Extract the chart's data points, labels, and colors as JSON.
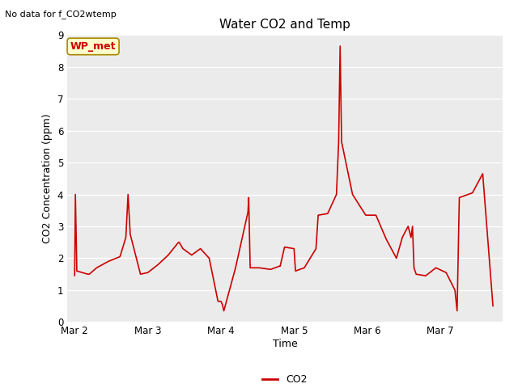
{
  "title": "Water CO2 and Temp",
  "top_left_text": "No data for f_CO2wtemp",
  "ylabel": "CO2 Concentration (ppm)",
  "xlabel": "Time",
  "ylim": [
    0.0,
    9.0
  ],
  "yticks": [
    0.0,
    1.0,
    2.0,
    3.0,
    4.0,
    5.0,
    6.0,
    7.0,
    8.0,
    9.0
  ],
  "background_color": "#ffffff",
  "plot_bg_color": "#ebebeb",
  "grid_color": "#ffffff",
  "line_color": "#cc0000",
  "legend_label": "CO2",
  "annotation_label": "WP_met",
  "annotation_bg": "#ffffcc",
  "annotation_border": "#aa8800",
  "x_days": [
    0.0,
    0.01,
    0.03,
    0.18,
    0.2,
    0.3,
    0.46,
    0.62,
    0.7,
    0.73,
    0.76,
    0.9,
    1.0,
    1.14,
    1.28,
    1.42,
    1.43,
    1.48,
    1.6,
    1.72,
    1.84,
    1.96,
    2.0,
    2.01,
    2.02,
    2.04,
    2.2,
    2.37,
    2.38,
    2.4,
    2.52,
    2.68,
    2.8,
    2.81,
    2.87,
    3.0,
    3.01,
    3.02,
    3.14,
    3.3,
    3.33,
    3.46,
    3.58,
    3.61,
    3.63,
    3.65,
    3.8,
    3.98,
    4.12,
    4.26,
    4.4,
    4.48,
    4.56,
    4.6,
    4.62,
    4.64,
    4.67,
    4.8,
    4.94,
    5.08,
    5.2,
    5.23,
    5.26,
    5.44,
    5.58,
    5.72
  ],
  "y_values": [
    1.45,
    4.0,
    1.6,
    1.5,
    1.5,
    1.7,
    1.9,
    2.05,
    2.65,
    4.0,
    2.75,
    1.5,
    1.55,
    1.8,
    2.1,
    2.5,
    2.5,
    2.3,
    2.1,
    2.3,
    2.0,
    0.65,
    0.65,
    0.6,
    0.55,
    0.35,
    1.7,
    3.45,
    3.9,
    1.7,
    1.7,
    1.65,
    1.75,
    1.75,
    2.35,
    2.3,
    1.95,
    1.6,
    1.7,
    2.3,
    3.35,
    3.4,
    4.0,
    5.65,
    8.65,
    5.65,
    4.0,
    3.35,
    3.35,
    2.6,
    2.0,
    2.65,
    3.0,
    2.65,
    3.0,
    1.7,
    1.5,
    1.45,
    1.7,
    1.55,
    1.0,
    0.35,
    3.9,
    4.05,
    4.65,
    0.5
  ],
  "xtick_positions": [
    0,
    1,
    2,
    3,
    4,
    5
  ],
  "xtick_labels": [
    "Mar 2",
    "Mar 3",
    "Mar 4",
    "Mar 5",
    "Mar 6",
    "Mar 7"
  ],
  "xlim": [
    -0.1,
    5.85
  ]
}
